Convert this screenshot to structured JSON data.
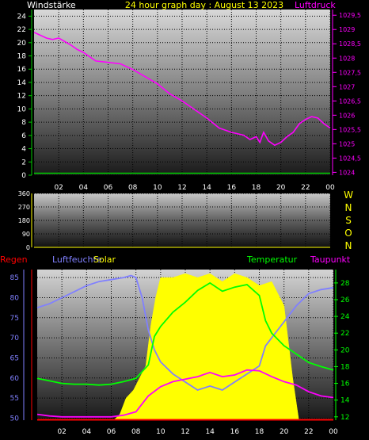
{
  "header": {
    "left_label": "Windstärke",
    "title": "24 hour graph day : August 13 2023",
    "right_label": "Luftdruck"
  },
  "legend_bottom": {
    "regen": "Regen",
    "luftfeuchte": "Luftfeuchte",
    "solar": "Solar",
    "temperatur": "Temperatur",
    "taupunkt": "Taupunkt"
  },
  "compass": [
    "W",
    "N",
    "S",
    "O",
    "N"
  ],
  "colors": {
    "background": "#000000",
    "wind": "#00cc00",
    "pressure": "#ff00ff",
    "temperature": "#00ff00",
    "humidity": "#8080ff",
    "dewpoint": "#ff00ff",
    "solar": "#ffff00",
    "rain": "#ff0000",
    "title": "#ffff00"
  },
  "chart_data": [
    {
      "type": "line",
      "name": "top",
      "x_ticks": [
        "02",
        "04",
        "06",
        "08",
        "10",
        "12",
        "14",
        "16",
        "18",
        "20",
        "22",
        "00"
      ],
      "x_range_hours": [
        0,
        24
      ],
      "y_left_ticks": [
        "0",
        "2",
        "4",
        "6",
        "8",
        "10",
        "12",
        "14",
        "16",
        "18",
        "20",
        "22",
        "24"
      ],
      "y_left_range": [
        0,
        25
      ],
      "y_right_ticks": [
        "1024",
        "1024,5",
        "1025",
        "1025,5",
        "1026",
        "1026,5",
        "1027",
        "1027,5",
        "1028",
        "1028,5",
        "1029",
        "1029,5"
      ],
      "y_right_range": [
        1023.9,
        1029.7
      ],
      "series": [
        {
          "name": "Windstärke",
          "axis": "left",
          "x": [
            0,
            24
          ],
          "y": [
            0.3,
            0.3
          ]
        },
        {
          "name": "Luftdruck",
          "axis": "right",
          "x": [
            0,
            0.5,
            1,
            1.5,
            2,
            3,
            3.5,
            4,
            5,
            6,
            7,
            8,
            9,
            10,
            11,
            12,
            13,
            14,
            15,
            16,
            17,
            17.5,
            18,
            18.3,
            18.6,
            19,
            19.5,
            20,
            20.5,
            21,
            21.5,
            22,
            22.5,
            23,
            23.5,
            24
          ],
          "y": [
            1028.9,
            1028.8,
            1028.7,
            1028.65,
            1028.7,
            1028.45,
            1028.3,
            1028.2,
            1027.9,
            1027.85,
            1027.8,
            1027.6,
            1027.35,
            1027.1,
            1026.75,
            1026.5,
            1026.2,
            1025.9,
            1025.55,
            1025.4,
            1025.3,
            1025.15,
            1025.25,
            1025.05,
            1025.4,
            1025.1,
            1024.95,
            1025.05,
            1025.25,
            1025.4,
            1025.7,
            1025.85,
            1025.95,
            1025.9,
            1025.7,
            1025.55
          ]
        }
      ]
    },
    {
      "type": "line",
      "name": "middle",
      "y_ticks": [
        "0",
        "90",
        "180",
        "270",
        "360"
      ],
      "y_range": [
        0,
        360
      ]
    },
    {
      "type": "line",
      "name": "bottom",
      "y_left_ticks": [
        "50",
        "55",
        "60",
        "65",
        "70",
        "75",
        "80",
        "85"
      ],
      "y_left_range": [
        49.5,
        87
      ],
      "y_right_ticks": [
        "12",
        "14",
        "16",
        "18",
        "20",
        "22",
        "24",
        "26",
        "28"
      ],
      "y_right_range": [
        11.6,
        29.6
      ],
      "series": [
        {
          "name": "Luftfeuchte",
          "axis": "left",
          "x": [
            0,
            1,
            2,
            3,
            4,
            5,
            6,
            7,
            7.6,
            8,
            8.5,
            9,
            9.5,
            10,
            11,
            12,
            13,
            14,
            15,
            16,
            17,
            18,
            18.5,
            19,
            19.5,
            20,
            20.5,
            21,
            22,
            23,
            24
          ],
          "y": [
            77.5,
            78.5,
            80,
            81.5,
            83,
            84,
            84.5,
            85,
            85.5,
            85,
            80,
            72,
            67,
            64,
            61,
            59,
            57,
            58,
            57,
            59,
            61,
            63,
            68,
            70,
            72,
            74,
            76,
            78,
            81,
            82,
            82.5
          ]
        },
        {
          "name": "Temperatur",
          "axis": "right",
          "x": [
            0,
            1,
            2,
            3,
            4,
            5,
            6,
            7,
            8,
            9,
            9.5,
            10,
            11,
            12,
            13,
            14,
            15,
            16,
            17,
            18,
            18.5,
            19,
            20,
            21,
            22,
            23,
            24
          ],
          "y": [
            16.6,
            16.3,
            16,
            15.9,
            15.9,
            15.8,
            15.9,
            16.2,
            16.6,
            18.2,
            21.6,
            22.8,
            24.5,
            25.7,
            27.1,
            28.0,
            27.0,
            27.5,
            27.8,
            26.5,
            23.5,
            22.0,
            20.5,
            19.5,
            18.5,
            18.0,
            17.6
          ]
        },
        {
          "name": "Taupunkt",
          "axis": "right",
          "x": [
            0,
            1,
            2,
            3,
            4,
            5,
            6,
            7,
            8,
            9,
            10,
            11,
            12,
            13,
            14,
            15,
            16,
            17,
            18,
            19,
            20,
            21,
            22,
            23,
            24
          ],
          "y": [
            12.3,
            12.1,
            12.0,
            12.0,
            12.0,
            12.0,
            12.0,
            12.2,
            12.6,
            14.5,
            15.6,
            16.2,
            16.5,
            16.8,
            17.3,
            16.8,
            17.0,
            17.6,
            17.5,
            16.8,
            16.2,
            15.8,
            15.0,
            14.5,
            14.3
          ]
        },
        {
          "name": "Solar",
          "axis": "left",
          "x": [
            0,
            6.2,
            6.7,
            7.2,
            7.8,
            8.3,
            8.8,
            9.2,
            9.6,
            10,
            11,
            12,
            13,
            14,
            15,
            16,
            17,
            18,
            19,
            20,
            20.7,
            21.2,
            24
          ],
          "y": [
            49.5,
            49.5,
            51,
            55,
            57,
            60,
            63,
            73,
            80,
            85,
            85,
            86,
            85,
            86,
            84,
            86,
            85,
            83,
            84,
            78,
            60,
            49.5,
            49.5
          ]
        },
        {
          "name": "Regen",
          "axis": "left",
          "x": [
            0,
            24
          ],
          "y": [
            49.6,
            49.6
          ]
        }
      ]
    }
  ]
}
